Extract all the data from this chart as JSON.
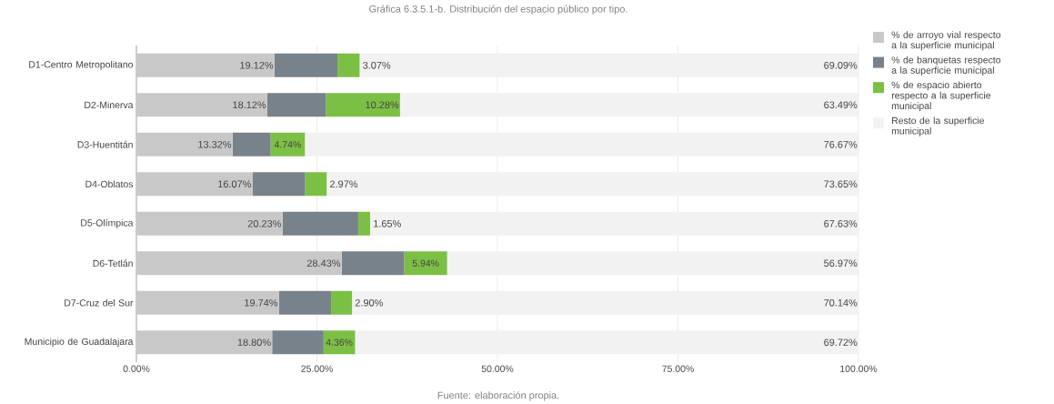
{
  "chart_data": {
    "type": "bar",
    "orientation": "horizontal",
    "stacked": true,
    "title": "Gráfica 6.3.5.1-b. Distribución del espacio público por tipo.",
    "annotations": [
      "Fuente: elaboración propia."
    ],
    "categories": [
      "D1-Centro Metropolitano",
      "D2-Minerva",
      "D3-Huentitán",
      "D4-Oblatos",
      "D5-Olímpica",
      "D6-Tetlán",
      "D7-Cruz del Sur",
      "Municipio de Guadalajara"
    ],
    "series": [
      {
        "name": "% de arroyo vial respecto a la superficie municipal",
        "color": "#c8c8c8",
        "values": [
          19.12,
          18.12,
          13.32,
          16.07,
          20.23,
          28.43,
          19.74,
          18.8
        ],
        "value_labels": [
          "19.12%",
          "18.12%",
          "13.32%",
          "16.07%",
          "20.23%",
          "28.43%",
          "19.74%",
          "18.80%"
        ]
      },
      {
        "name": "% de banquetas respecto a la superficie municipal",
        "color": "#78828a",
        "values": [
          8.72,
          8.11,
          5.27,
          7.31,
          10.49,
          8.66,
          7.22,
          7.12
        ]
      },
      {
        "name": "% de espacio abierto respecto a la superficie municipal",
        "color": "#7cbf45",
        "values": [
          3.07,
          10.28,
          4.74,
          2.97,
          1.65,
          5.94,
          2.9,
          4.36
        ],
        "value_labels": [
          "3.07%",
          "10.28%",
          "4.74%",
          "2.97%",
          "1.65%",
          "5.94%",
          "2.90%",
          "4.36%"
        ]
      },
      {
        "name": "Resto de la superficie municipal",
        "color": "#f2f2f2",
        "values": [
          69.09,
          63.49,
          76.67,
          73.65,
          67.63,
          56.97,
          70.14,
          69.72
        ],
        "value_labels": [
          "69.09%",
          "63.49%",
          "76.67%",
          "73.65%",
          "67.63%",
          "56.97%",
          "70.14%",
          "69.72%"
        ]
      }
    ],
    "xlim": [
      0,
      100
    ],
    "xticks": [
      {
        "value": 0,
        "label": "0.00%"
      },
      {
        "value": 25,
        "label": "25.00%"
      },
      {
        "value": 50,
        "label": "50.00%"
      },
      {
        "value": 75,
        "label": "75.00%"
      },
      {
        "value": 100,
        "label": "100.00%"
      }
    ],
    "grid": "x",
    "legend": "right"
  }
}
